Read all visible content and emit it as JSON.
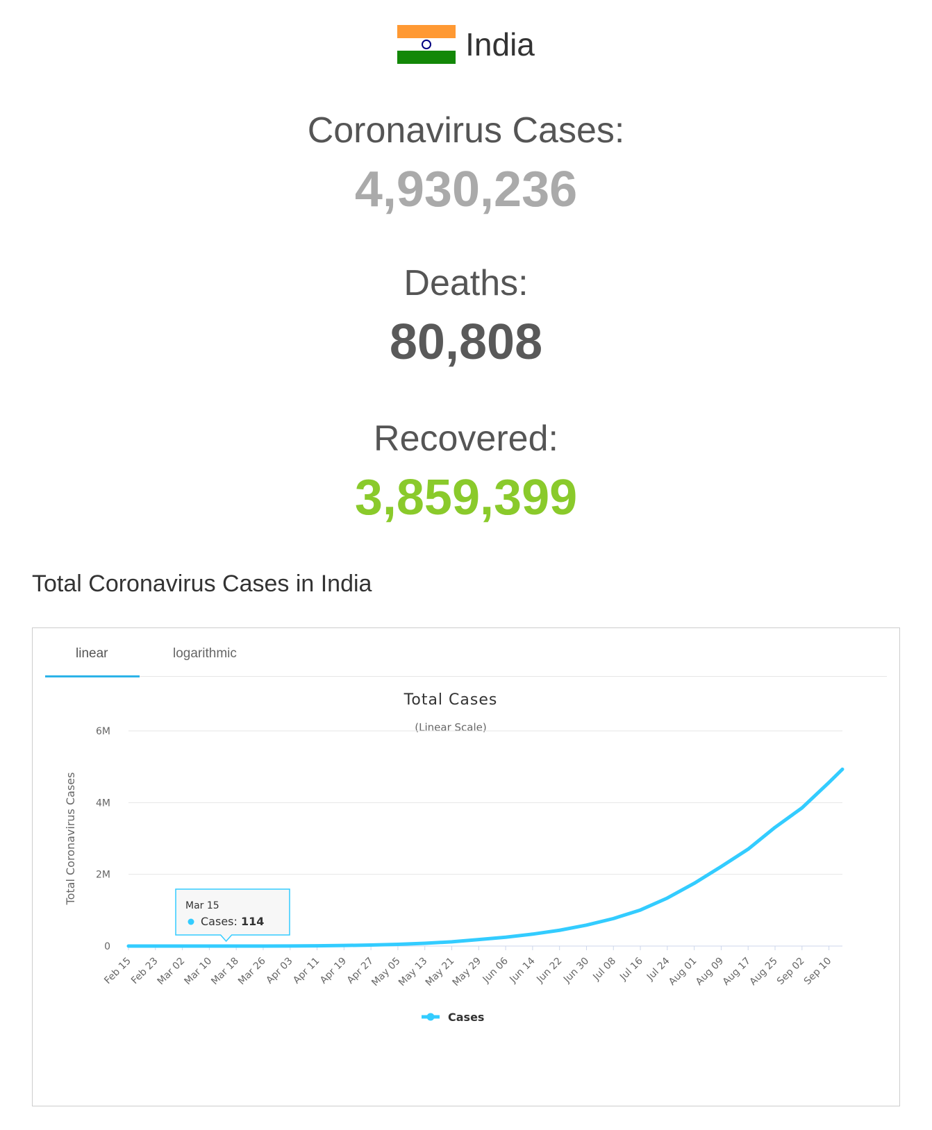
{
  "country": {
    "name": "India",
    "flag_colors": [
      "#FF9933",
      "#FFFFFF",
      "#138808"
    ]
  },
  "stats": {
    "cases_label": "Coronavirus Cases:",
    "cases_value": "4,930,236",
    "deaths_label": "Deaths:",
    "deaths_value": "80,808",
    "recovered_label": "Recovered:",
    "recovered_value": "3,859,399"
  },
  "colors": {
    "cases": "#AAAAAA",
    "deaths": "#595959",
    "recovered": "#8ACA2B",
    "series": "#33CCFF"
  },
  "section_title": "Total Coronavirus Cases in India",
  "tabs": {
    "linear": "linear",
    "logarithmic": "logarithmic",
    "active": "linear"
  },
  "tooltip": {
    "date": "Mar 15",
    "label": "Cases:",
    "value": "114"
  },
  "chart_data": {
    "type": "line",
    "title": "Total Cases",
    "subtitle": "(Linear Scale)",
    "ylabel": "Total Coronavirus Cases",
    "xlabel": "",
    "ylim": [
      0,
      6000000
    ],
    "yticks": [
      0,
      2000000,
      4000000,
      6000000
    ],
    "ytick_labels": [
      "0",
      "2M",
      "4M",
      "6M"
    ],
    "x_tick_labels": [
      "Feb 15",
      "Feb 23",
      "Mar 02",
      "Mar 10",
      "Mar 18",
      "Mar 26",
      "Apr 03",
      "Apr 11",
      "Apr 19",
      "Apr 27",
      "May 05",
      "May 13",
      "May 21",
      "May 29",
      "Jun 06",
      "Jun 14",
      "Jun 22",
      "Jun 30",
      "Jul 08",
      "Jul 16",
      "Jul 24",
      "Aug 01",
      "Aug 09",
      "Aug 17",
      "Aug 25",
      "Sep 02",
      "Sep 10"
    ],
    "legend_position": "bottom-center",
    "grid": true,
    "series": [
      {
        "name": "Cases",
        "x": [
          "Feb 15",
          "Feb 23",
          "Mar 02",
          "Mar 10",
          "Mar 15",
          "Mar 18",
          "Mar 26",
          "Apr 03",
          "Apr 11",
          "Apr 19",
          "Apr 27",
          "May 05",
          "May 13",
          "May 21",
          "May 29",
          "Jun 06",
          "Jun 14",
          "Jun 22",
          "Jun 30",
          "Jul 08",
          "Jul 16",
          "Jul 24",
          "Aug 01",
          "Aug 09",
          "Aug 17",
          "Aug 25",
          "Sep 02",
          "Sep 10",
          "Sep 14"
        ],
        "values": [
          3,
          3,
          5,
          56,
          114,
          171,
          727,
          2567,
          7600,
          16116,
          29451,
          49400,
          78055,
          118447,
          181827,
          247000,
          333000,
          440000,
          585000,
          767000,
          1005000,
          1338000,
          1750000,
          2215000,
          2702000,
          3310000,
          3853000,
          4562000,
          4930236
        ]
      }
    ]
  }
}
